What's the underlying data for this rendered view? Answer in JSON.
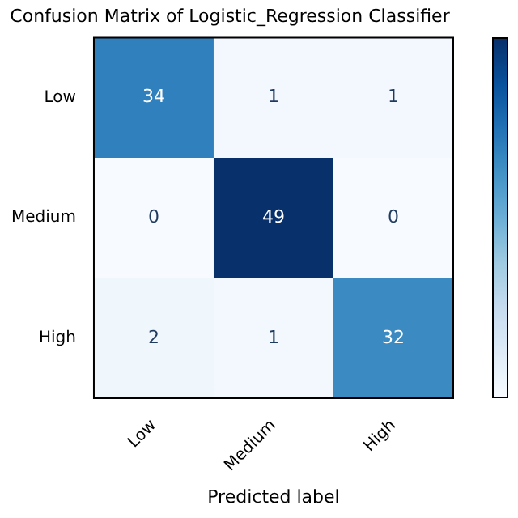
{
  "chart_data": {
    "type": "heatmap",
    "title": "Confusion Matrix of Logistic_Regression Classifier",
    "xlabel": "Predicted label",
    "categories": [
      "Low",
      "Medium",
      "High"
    ],
    "y_categories": [
      "Low",
      "Medium",
      "High"
    ],
    "cells": [
      [
        34,
        1,
        1
      ],
      [
        0,
        49,
        0
      ],
      [
        2,
        1,
        32
      ]
    ],
    "data_labels": true
  }
}
